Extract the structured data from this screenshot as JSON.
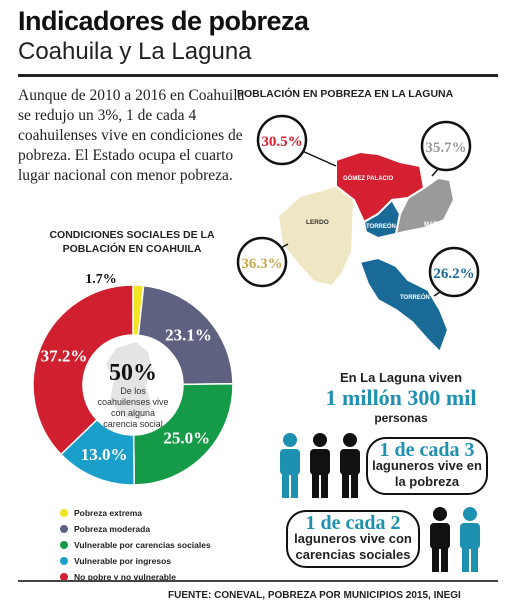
{
  "header": {
    "title": "Indicadores de pobreza",
    "subtitle": "Coahuila y La Laguna"
  },
  "intro_text": "Aunque de 2010 a 2016 en Coahuila se redujo un 3%, 1 de cada 4 coahuilenses vive en condiciones de pobreza. El Estado ocupa el cuarto lugar nacional con menor pobreza.",
  "map": {
    "title": "POBLACIÓN EN POBREZA EN LA LAGUNA",
    "regions": [
      {
        "name": "GÓMEZ PALACIO",
        "value": "30.5%",
        "color": "#d42030"
      },
      {
        "name": "MATAMOROS",
        "value": "35.7%",
        "color": "#9a9a9a"
      },
      {
        "name": "LERDO",
        "value": "36.3%",
        "color": "#efe6c4"
      },
      {
        "name": "TORREÓN",
        "value": "26.2%",
        "color": "#1a6a98"
      },
      {
        "name": "TORREÓN",
        "value": "",
        "color": "#1a6a98"
      }
    ]
  },
  "chart_data": {
    "type": "pie",
    "title": "CONDICIONES SOCIALES DE LA POBLACIÓN EN COAHUILA",
    "categories": [
      "Pobreza extrema",
      "Pobreza moderada",
      "Vulnerable por carencias sociales",
      "Vulnerable por ingresos",
      "No pobre y no vulnerable"
    ],
    "values": [
      1.7,
      23.1,
      25.0,
      13.0,
      37.2
    ],
    "labels": [
      "1.7%",
      "23.1%",
      "25.0%",
      "13.0%",
      "37.2%"
    ],
    "colors": [
      "#f2e422",
      "#5f6181",
      "#159a47",
      "#1a9fca",
      "#d01f2e"
    ],
    "center": {
      "value": "50%",
      "text": "De los coahuilenses vive con alguna carencia social"
    },
    "legend_position": "bottom"
  },
  "laguna_population": {
    "line1": "En La Laguna viven",
    "line2": "1 millón 300 mil",
    "line3": "personas"
  },
  "stat1": {
    "num": "1 de cada 3",
    "text": "laguneros vive en la pobreza",
    "icons": [
      "person-teal",
      "person-black",
      "person-black"
    ]
  },
  "stat2": {
    "num": "1 de cada 2",
    "text": "laguneros vive con carencias sociales",
    "icons": [
      "person-black",
      "person-teal"
    ]
  },
  "colors": {
    "teal": "#1e90b0",
    "black": "#111111"
  },
  "source": "FUENTE: CONEVAL, POBREZA POR MUNICIPIOS 2015, INEGI"
}
